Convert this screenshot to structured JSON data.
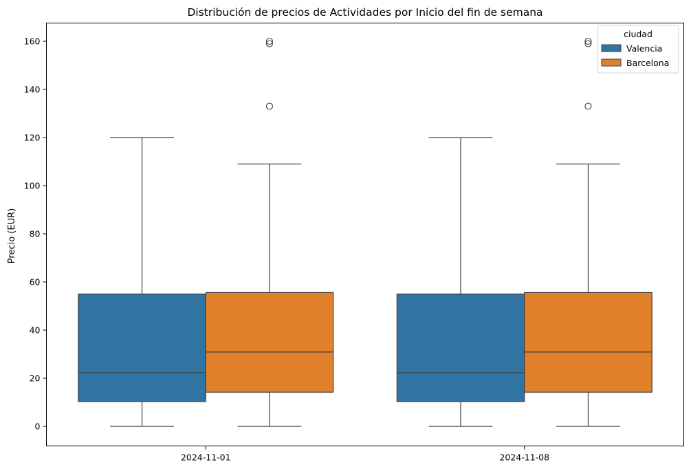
{
  "chart_data": {
    "type": "boxplot",
    "title": "Distribución de precios de Actividades por Inicio del fin de semana",
    "xlabel": "",
    "ylabel": "Precio (EUR)",
    "ylim": [
      -8,
      168
    ],
    "yticks": [
      0,
      20,
      40,
      60,
      80,
      100,
      120,
      140,
      160
    ],
    "categories": [
      "2024-11-01",
      "2024-11-08"
    ],
    "grid": false,
    "legend": {
      "title": "ciudad",
      "position": "top-right"
    },
    "series": [
      {
        "name": "Valencia",
        "color": "#3274a1",
        "boxes": [
          {
            "category": "2024-11-01",
            "whislo": 0,
            "q1": 10.3,
            "med": 22.3,
            "q3": 55,
            "whishi": 120,
            "fliers": []
          },
          {
            "category": "2024-11-08",
            "whislo": 0,
            "q1": 10.3,
            "med": 22.3,
            "q3": 55,
            "whishi": 120,
            "fliers": []
          }
        ]
      },
      {
        "name": "Barcelona",
        "color": "#e1812c",
        "boxes": [
          {
            "category": "2024-11-01",
            "whislo": 0,
            "q1": 14.2,
            "med": 30.9,
            "q3": 55.6,
            "whishi": 109,
            "fliers": [
              133,
              159,
              160
            ]
          },
          {
            "category": "2024-11-08",
            "whislo": 0,
            "q1": 14.2,
            "med": 30.9,
            "q3": 55.6,
            "whishi": 109,
            "fliers": [
              133,
              159,
              160
            ]
          }
        ]
      }
    ]
  }
}
